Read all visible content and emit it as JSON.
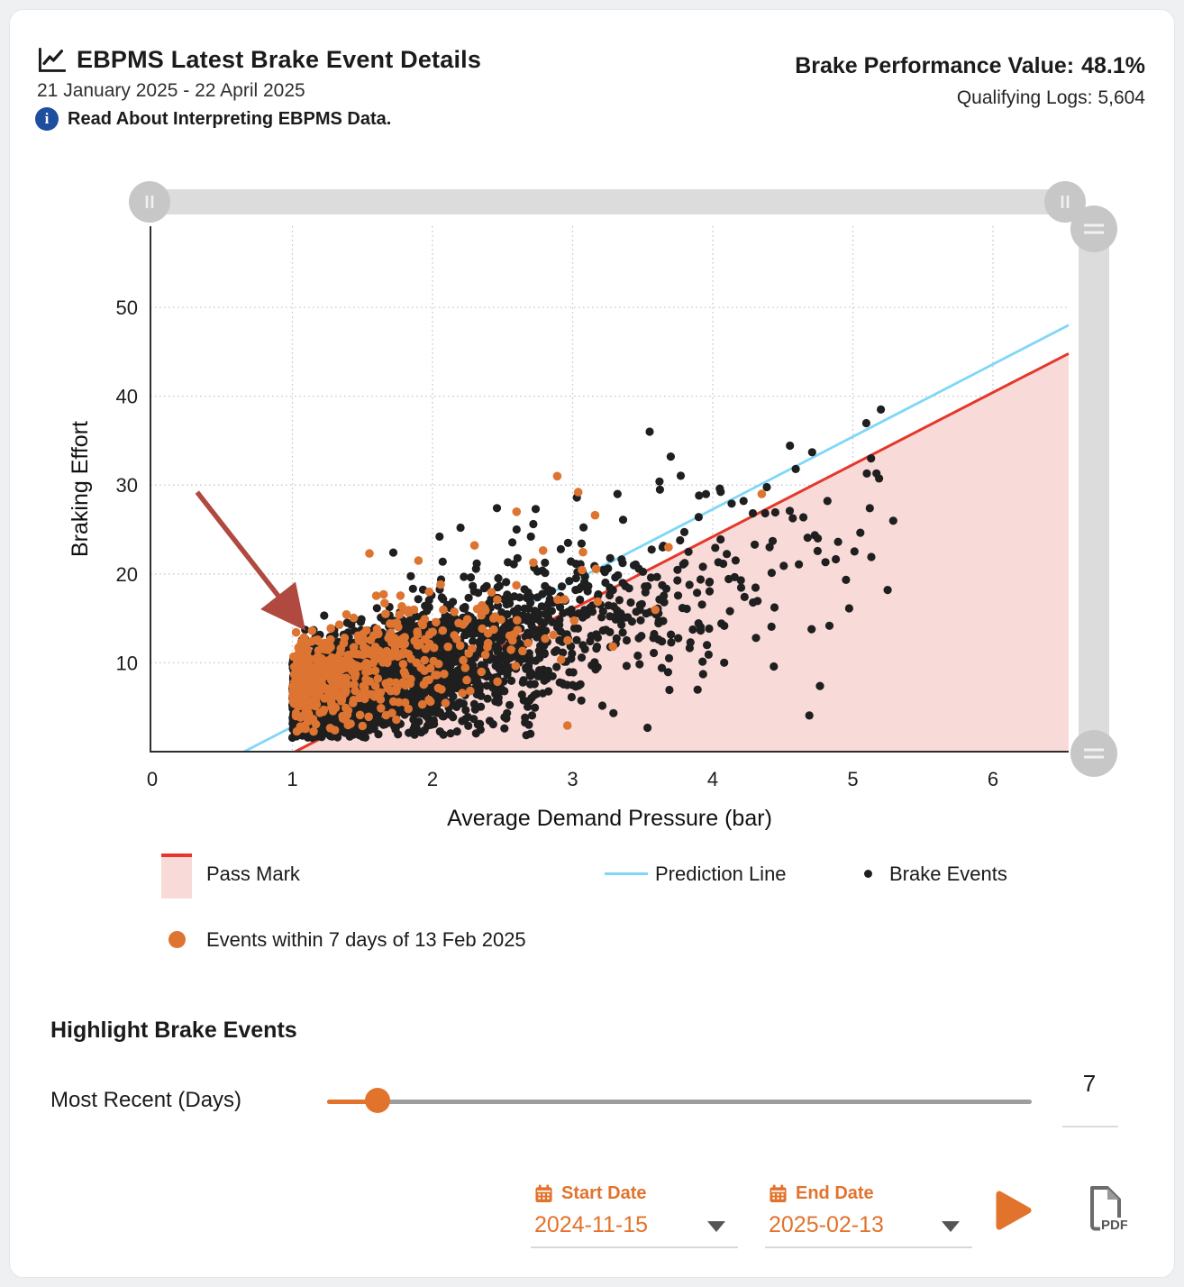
{
  "colors": {
    "accent_orange": "#e2732c",
    "dot_orange": "#dd7431",
    "dot_black": "#1f1f1f",
    "pass_red": "#e5372b",
    "pass_fill": "#f8dbd8",
    "prediction_blue": "#7fd7f8",
    "arrow_red": "#b04a40",
    "info_blue": "#1d4f9e",
    "slider_gray": "#dcdcdc",
    "handle_gray": "#c7c7c7"
  },
  "header": {
    "title": "EBPMS Latest Brake Event Details",
    "date_range": "21 January 2025 - 22 April 2025",
    "info_link": "Read About Interpreting EBPMS Data.",
    "bpv_label": "Brake Performance Value:",
    "bpv_value": "48.1%",
    "logs_label": "Qualifying Logs:",
    "logs_value": "5,604"
  },
  "chart_data": {
    "type": "scatter",
    "title": "EBPMS Latest Brake Event Details",
    "xlabel": "Average Demand Pressure (bar)",
    "ylabel": "Braking Effort",
    "xlim": [
      0,
      6.54
    ],
    "ylim": [
      0,
      59
    ],
    "x_ticks": [
      0,
      1,
      2,
      3,
      4,
      5,
      6
    ],
    "y_ticks": [
      10,
      20,
      30,
      40,
      50
    ],
    "grid": "dotted",
    "legend": [
      {
        "label": "Pass Mark",
        "type": "area"
      },
      {
        "label": "Prediction Line",
        "type": "line"
      },
      {
        "label": "Brake Events",
        "type": "dot-black"
      },
      {
        "label": "Events within 7 days of 13 Feb 2025",
        "type": "dot-orange"
      }
    ],
    "pass_line": {
      "x1": 1.02,
      "y1": 0,
      "x2": 6.54,
      "y2": 44.8
    },
    "prediction_line": {
      "x1": 0.656,
      "y1": 0,
      "x2": 6.54,
      "y2": 48.0
    },
    "point_cloud": {
      "black": {
        "count": 3000,
        "x_min": 1.0,
        "x_exp_mean": 0.8,
        "x_max": 5.35,
        "y_intercept": 1.2,
        "y_slope": 4.3,
        "sigma_base": 2.5,
        "sigma_slope": 1.1,
        "y_min": 1.5,
        "radius": 4.6
      },
      "orange": {
        "count": 520,
        "x_min": 1.0,
        "x_exp_mean": 0.5,
        "x_max": 4.6,
        "y_intercept": 2.8,
        "y_slope": 4.4,
        "sigma_base": 2.6,
        "sigma_slope": 0.7,
        "y_min": 2.2,
        "radius": 4.8
      }
    },
    "outliers_black": [
      [
        3.55,
        36
      ],
      [
        5.2,
        38.5
      ],
      [
        5.13,
        33
      ],
      [
        5.1,
        31.3
      ],
      [
        3.7,
        33.2
      ],
      [
        3.62,
        30.4
      ],
      [
        4.05,
        29.6
      ],
      [
        4.22,
        28.2
      ],
      [
        3.32,
        29.0
      ],
      [
        3.03,
        28.6
      ],
      [
        2.46,
        27.4
      ],
      [
        2.2,
        25.2
      ],
      [
        4.55,
        27.1
      ],
      [
        3.9,
        26.4
      ],
      [
        3.36,
        26.1
      ],
      [
        4.75,
        24.0
      ],
      [
        4.3,
        23.3
      ],
      [
        2.05,
        24.2
      ],
      [
        2.6,
        25.0
      ],
      [
        1.72,
        22.4
      ]
    ],
    "outliers_orange": [
      [
        2.89,
        31.0
      ],
      [
        3.04,
        29.2
      ],
      [
        3.16,
        26.6
      ],
      [
        2.6,
        27.0
      ],
      [
        1.55,
        22.3
      ],
      [
        4.35,
        29.0
      ],
      [
        2.3,
        23.2
      ],
      [
        1.9,
        21.5
      ]
    ],
    "annotation_arrow": {
      "from": [
        0.32,
        29.2
      ],
      "to": [
        1.05,
        14.5
      ]
    },
    "seed": 20250213
  },
  "controls": {
    "highlight_heading": "Highlight Brake Events",
    "most_recent_label": "Most Recent (Days)",
    "most_recent_value": "7",
    "start_date_label": "Start Date",
    "start_date_value": "2024-11-15",
    "end_date_label": "End Date",
    "end_date_value": "2025-02-13"
  },
  "icons": {
    "info_glyph": "i",
    "pdf_label": "PDF"
  }
}
